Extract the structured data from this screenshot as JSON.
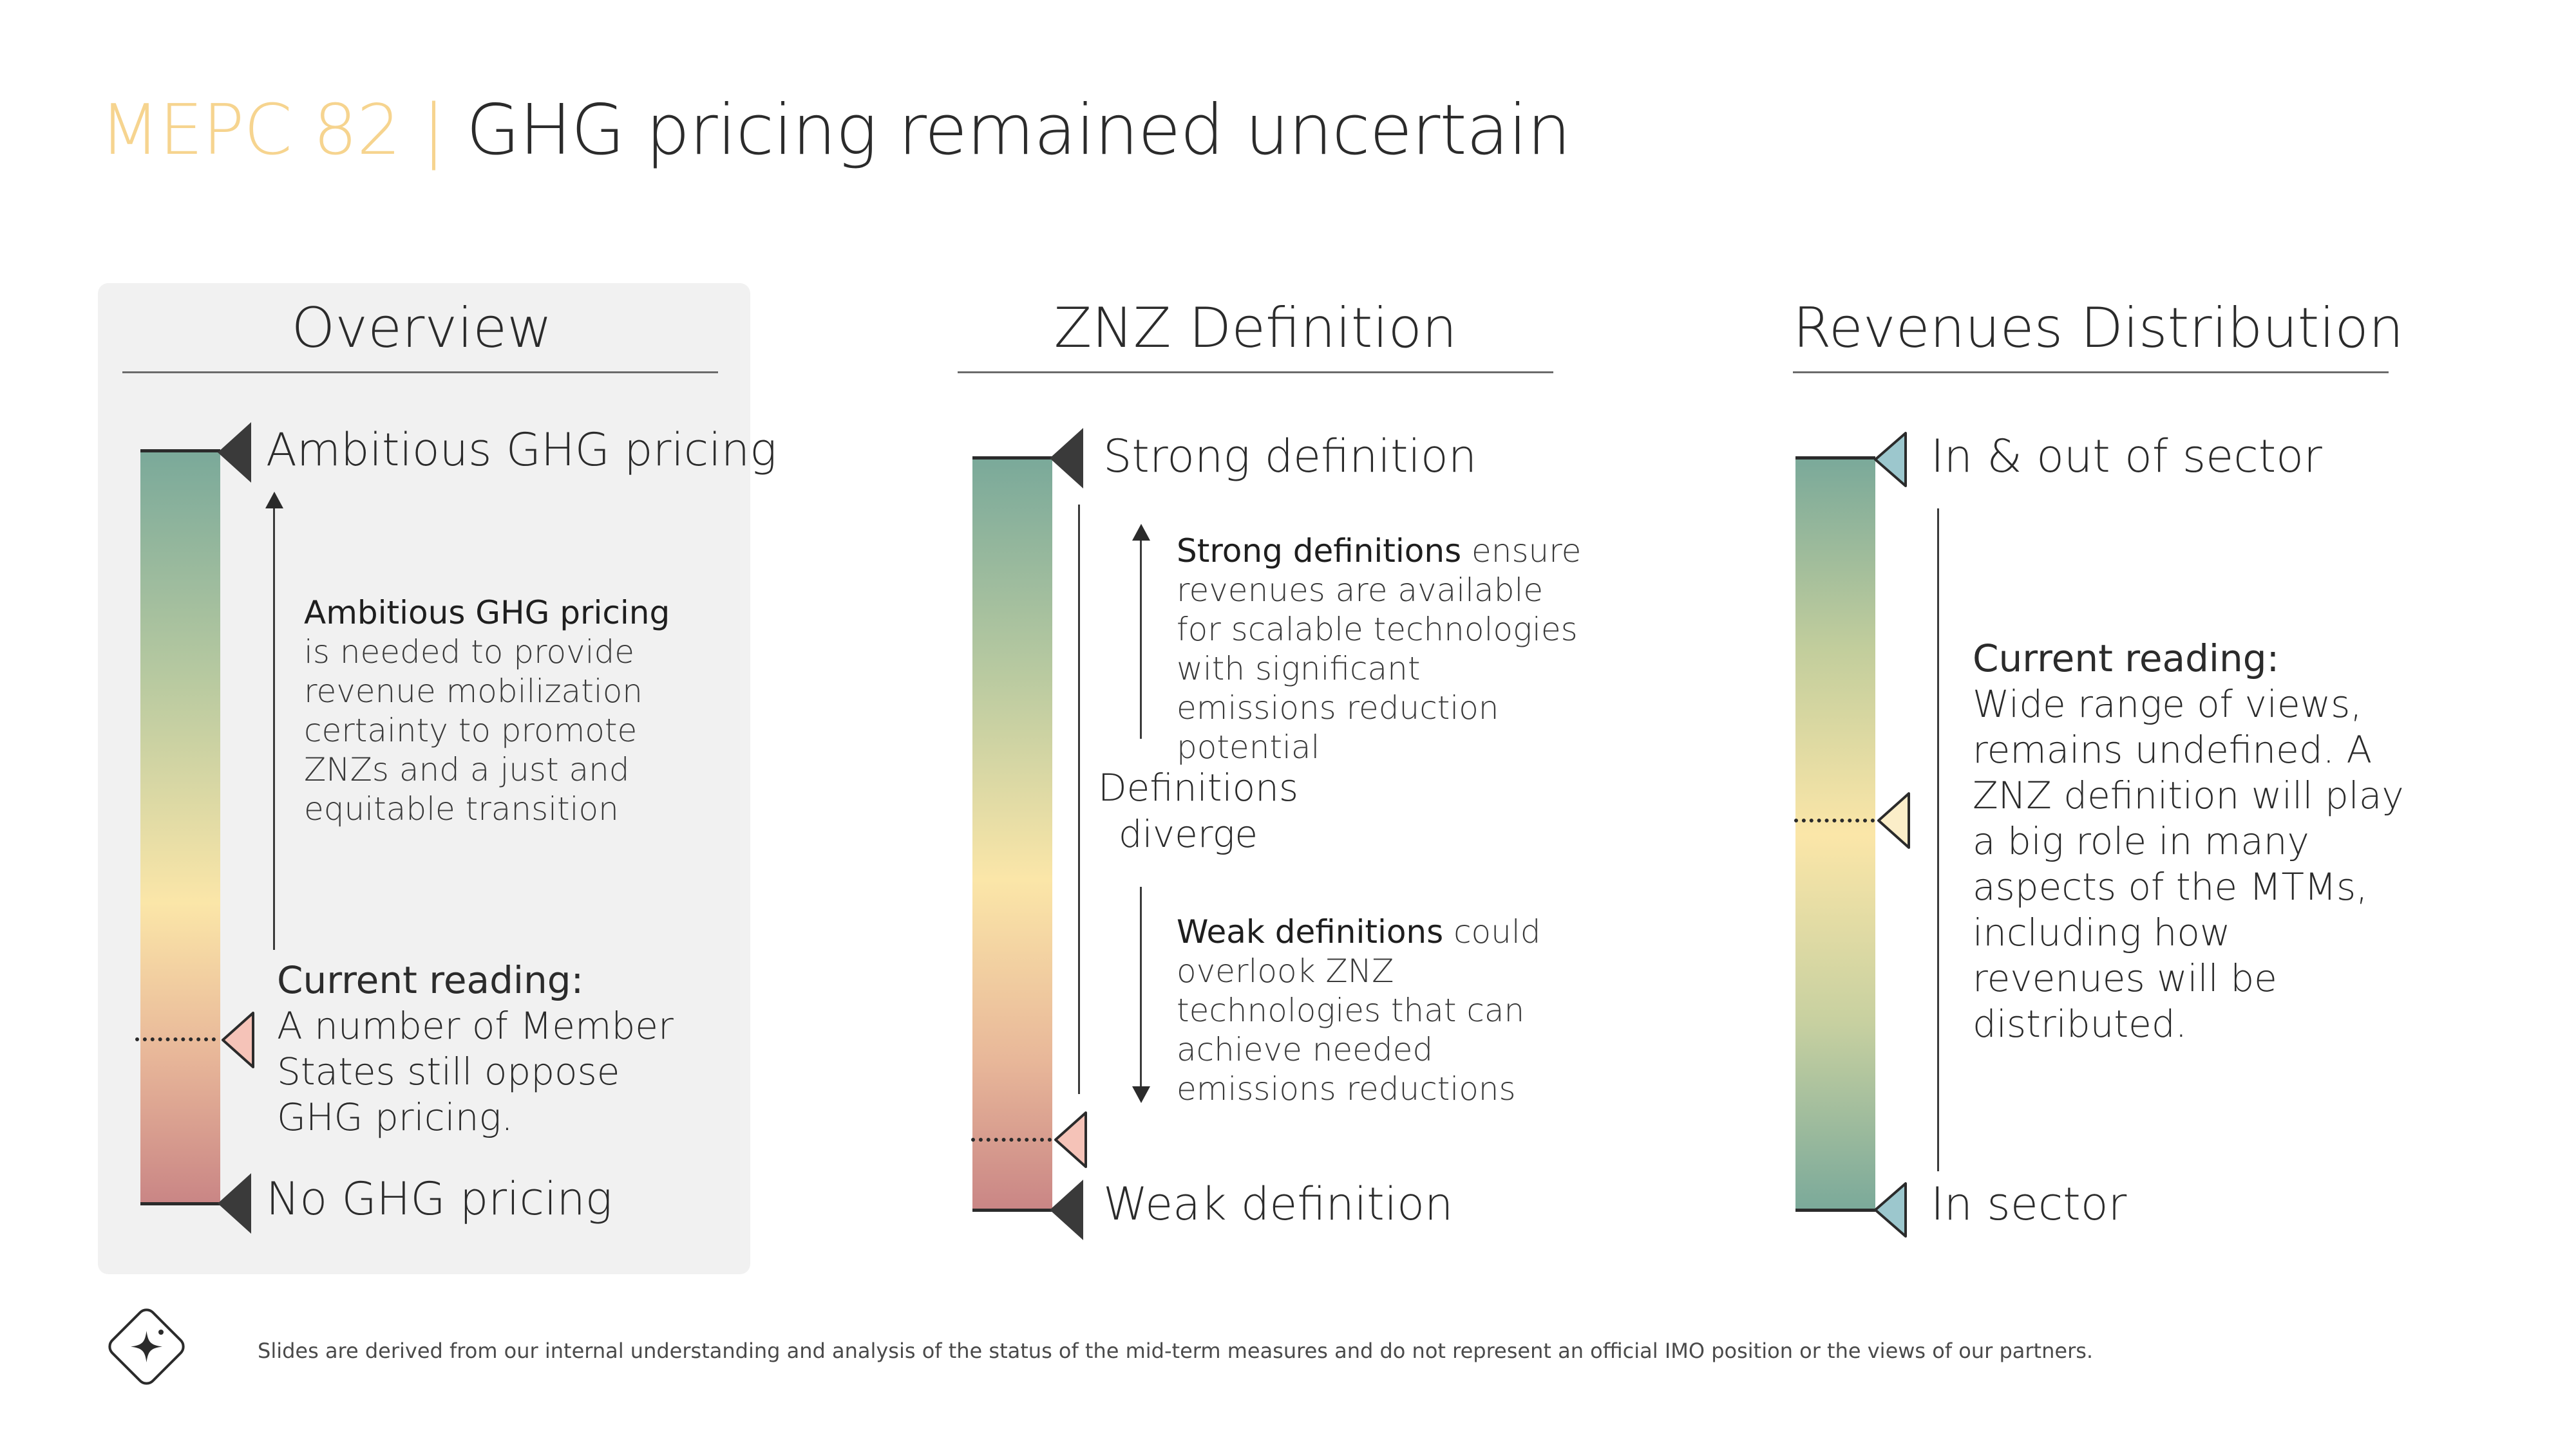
{
  "header": {
    "prefix": "MEPC 82",
    "separator": "|",
    "title": "GHG pricing remained uncertain"
  },
  "colors": {
    "accent": "#f6d48f",
    "green": "#7aa99a",
    "yellow": "#fbe6a8",
    "red": "#c98585",
    "pink_marker": "#f5c3b8",
    "teal_marker": "#9cc7cd",
    "cream_marker": "#fbeec9",
    "dark_marker": "#3a3a3a"
  },
  "overview": {
    "title": "Overview",
    "top_label": "Ambitious GHG pricing",
    "bottom_label": "No GHG pricing",
    "desc_bold": "Ambitious GHG pricing",
    "desc_rest": " is needed to provide revenue mobilization certainty to promote ZNZs and a just and equitable transition",
    "reading_head": "Current reading:",
    "reading_body": "A number of Member States still oppose GHG pricing."
  },
  "znz": {
    "title": "ZNZ Definition",
    "top_label": "Strong definition",
    "bottom_label": "Weak definition",
    "middle_line1": "Definitions",
    "middle_line2": "diverge",
    "strong_bold": "Strong definitions",
    "strong_rest": " ensure revenues are available for scalable technologies with significant emissions reduction potential",
    "weak_bold": "Weak definitions",
    "weak_rest": " could overlook ZNZ technologies that can achieve needed emissions reductions"
  },
  "revenues": {
    "title": "Revenues Distribution",
    "top_label": "In & out of sector",
    "bottom_label": "In sector",
    "reading_head": "Current reading:",
    "reading_body": "Wide range of views, remains undefined. A ZNZ definition will play a big role in many aspects of the MTMs, including how revenues will be distributed."
  },
  "footer": {
    "logo_icon": "sparkle-diamond-icon",
    "disclaimer": "Slides are derived from our internal understanding and analysis of the status of the mid-term measures and do not represent an official IMO position or the views of our partners."
  }
}
